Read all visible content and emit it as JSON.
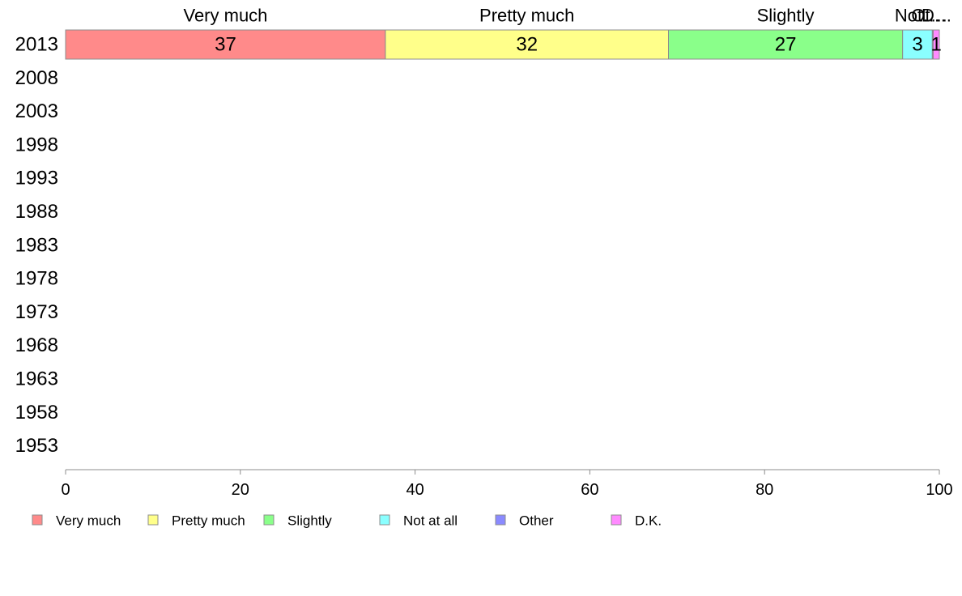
{
  "chart_data": {
    "type": "bar",
    "orientation": "horizontal",
    "stacked": true,
    "categories": [
      "2013",
      "2008",
      "2003",
      "1998",
      "1993",
      "1988",
      "1983",
      "1978",
      "1973",
      "1968",
      "1963",
      "1958",
      "1953"
    ],
    "series": [
      {
        "name": "Very much",
        "color": "#ff8a8a",
        "values": [
          36.6,
          null,
          null,
          null,
          null,
          null,
          null,
          null,
          null,
          null,
          null,
          null,
          null
        ],
        "label": "37"
      },
      {
        "name": "Pretty much",
        "color": "#ffff8a",
        "values": [
          32.4,
          null,
          null,
          null,
          null,
          null,
          null,
          null,
          null,
          null,
          null,
          null,
          null
        ],
        "label": "32"
      },
      {
        "name": "Slightly",
        "color": "#8aff8a",
        "values": [
          26.8,
          null,
          null,
          null,
          null,
          null,
          null,
          null,
          null,
          null,
          null,
          null,
          null
        ],
        "label": "27"
      },
      {
        "name": "Not at all",
        "color": "#8affff",
        "values": [
          3.4,
          null,
          null,
          null,
          null,
          null,
          null,
          null,
          null,
          null,
          null,
          null,
          null
        ],
        "label": "3"
      },
      {
        "name": "Other",
        "color": "#8a8aff",
        "values": [
          0.1,
          null,
          null,
          null,
          null,
          null,
          null,
          null,
          null,
          null,
          null,
          null,
          null
        ],
        "label": ""
      },
      {
        "name": "D.K.",
        "color": "#ff8aff",
        "values": [
          0.7,
          null,
          null,
          null,
          null,
          null,
          null,
          null,
          null,
          null,
          null,
          null,
          null
        ],
        "label": "1"
      }
    ],
    "top_labels": [
      "Very much",
      "Pretty much",
      "Slightly",
      "Not…",
      "Ot…",
      "D…"
    ],
    "xlim": [
      0,
      100
    ],
    "xticks": [
      0,
      20,
      40,
      60,
      80,
      100
    ],
    "title": "",
    "xlabel": "",
    "ylabel": "",
    "grid": false,
    "legend_position": "bottom"
  }
}
